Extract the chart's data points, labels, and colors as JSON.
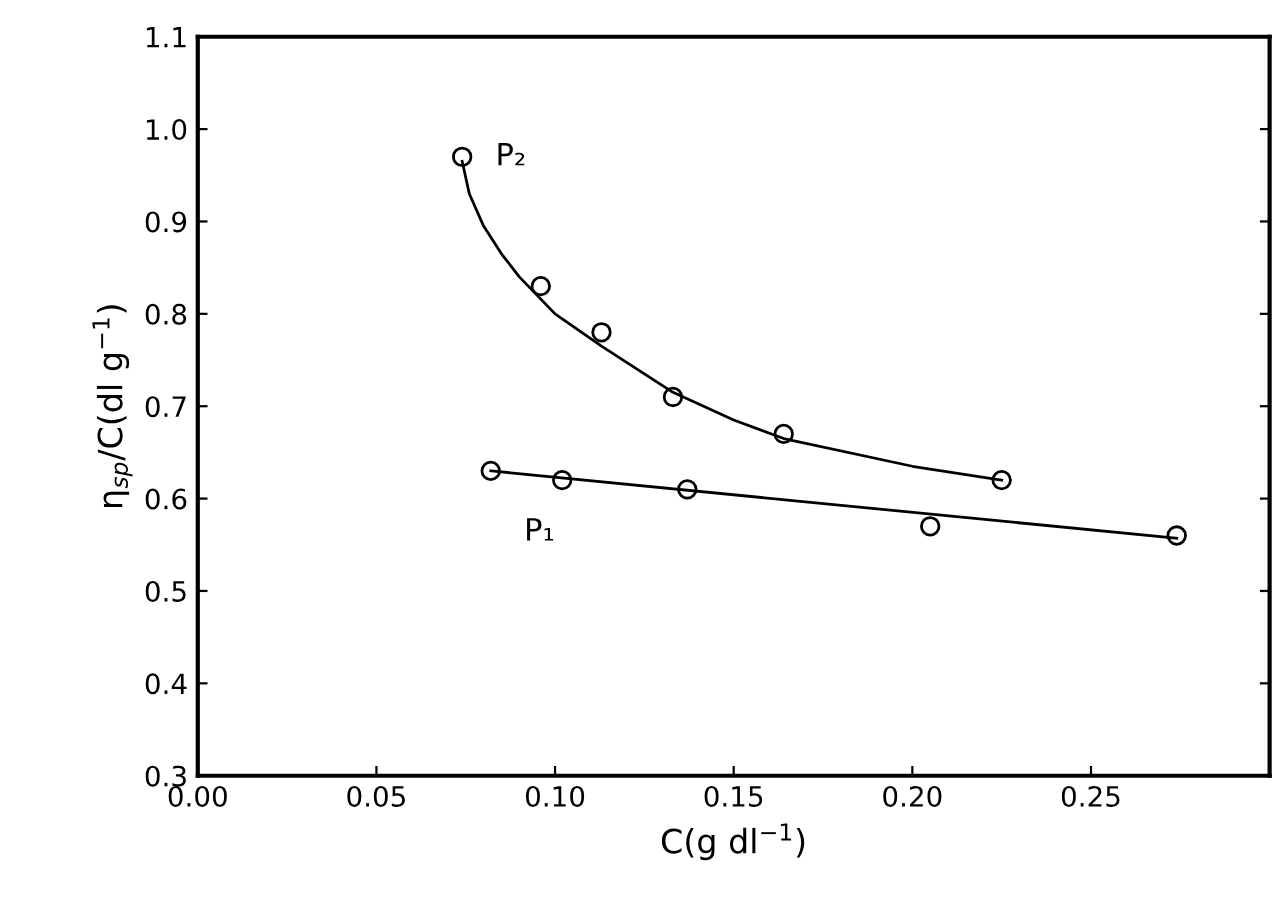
{
  "chart_data": {
    "type": "scatter",
    "xlabel": "C(g dl$^{−1}$)",
    "ylabel": "η$_{sp}$/C(dl g$^{−1}$)",
    "series": [
      {
        "color": "#000000",
        "marker": "circle",
        "x": [
          0.074,
          0.096,
          0.113,
          0.133,
          0.164,
          0.225
        ],
        "values": [
          0.97,
          0.83,
          0.78,
          0.71,
          0.67,
          0.62
        ]
      },
      {
        "color": "#000000",
        "marker": "circle",
        "x": [
          0.082,
          0.102,
          0.137,
          0.205,
          0.274
        ],
        "values": [
          0.63,
          0.62,
          0.61,
          0.57,
          0.56
        ]
      },
      {
        "type": "line",
        "marker": "none",
        "color": "#000000",
        "x": [
          0.074,
          0.076,
          0.08,
          0.085,
          0.09,
          0.1,
          0.113,
          0.133,
          0.15,
          0.164,
          0.2,
          0.225
        ],
        "values": [
          0.965,
          0.93,
          0.895,
          0.865,
          0.84,
          0.8,
          0.765,
          0.715,
          0.685,
          0.665,
          0.635,
          0.62
        ]
      },
      {
        "type": "line",
        "marker": "none",
        "color": "#000000",
        "x": [
          0.082,
          0.274
        ],
        "values": [
          0.63,
          0.557
        ]
      }
    ],
    "annotations": [
      "P₂",
      "P₁"
    ],
    "xlim": [
      0,
      0.3
    ],
    "ylim": [
      0.3,
      1.1
    ],
    "xticks": [
      {
        "value": 0,
        "label": "0.00"
      },
      0.05,
      {
        "value": 0.1,
        "label": "0.10"
      },
      0.15,
      {
        "value": 0.2,
        "label": "0.20"
      },
      0.25
    ],
    "yticks": [
      0.3,
      0.4,
      0.5,
      0.6,
      0.7,
      0.8,
      0.9,
      {
        "value": 1.0,
        "label": "1.0"
      },
      1.1
    ],
    "grid": false
  }
}
